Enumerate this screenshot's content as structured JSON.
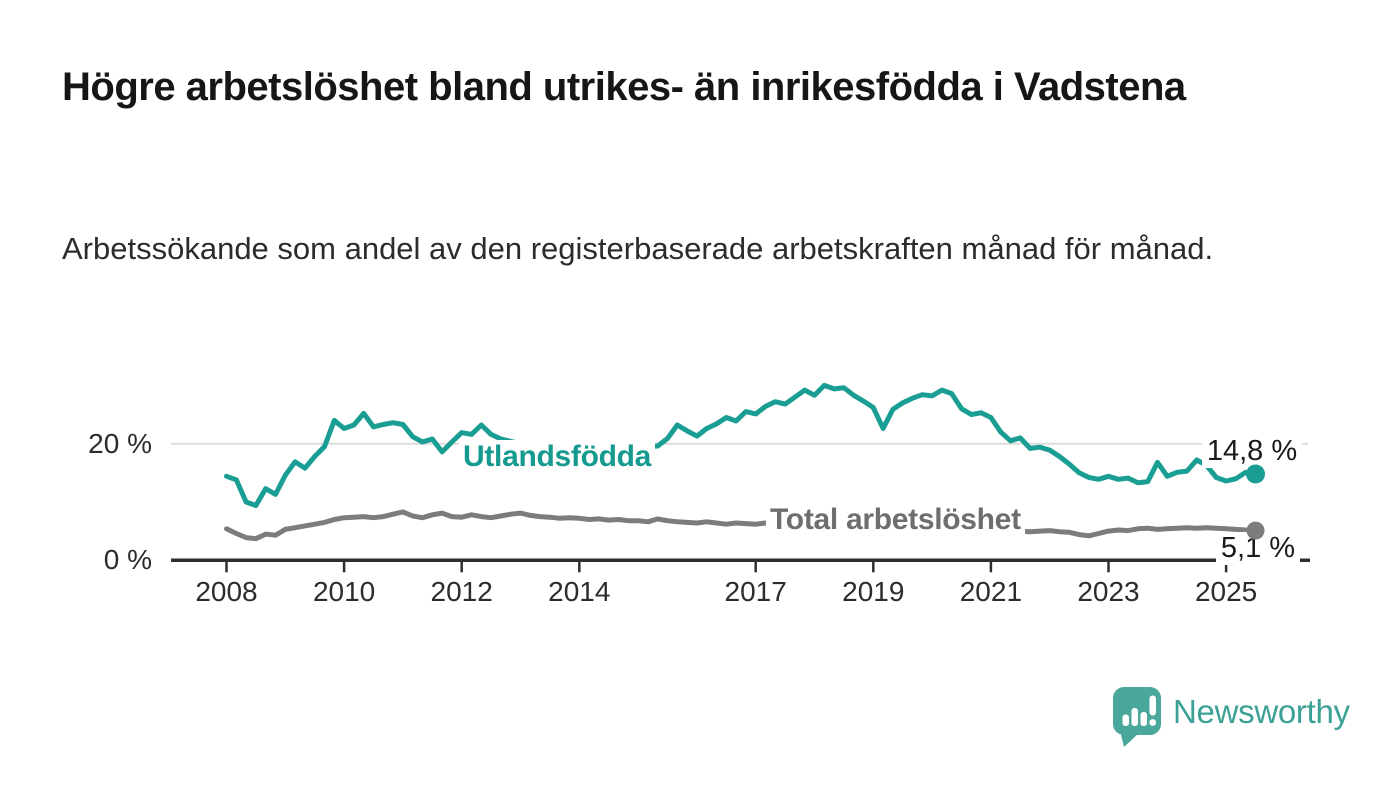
{
  "header": {
    "title": "Högre arbetslöshet bland utrikes- än inrikesfödda i Vadstena",
    "subtitle": "Arbetssökande som andel av den registerbaserade arbetskraften månad för månad."
  },
  "chart_data": {
    "type": "line",
    "title": "Högre arbetslöshet bland utrikes- än inrikesfödda i Vadstena",
    "xlabel": "",
    "ylabel": "Arbetssökande som andel av den registerbaserade arbetskraften",
    "x_unit": "year (monthly data)",
    "x_start": 2008.0,
    "x_step_years": 0.166667,
    "x_ticks": [
      2008,
      2010,
      2012,
      2014,
      2017,
      2019,
      2021,
      2023,
      2025
    ],
    "y_ticks": [
      {
        "value": 0,
        "label": "0 %"
      },
      {
        "value": 20,
        "label": "20 %"
      }
    ],
    "gridline_at": 20,
    "ylim": [
      0,
      32
    ],
    "legend_position": "inline labels on lines",
    "grid": "single light horizontal gridline at 20 %",
    "series": [
      {
        "name": "Utlandsfödda",
        "color": "#1a9e94",
        "end_label": "14,8 %",
        "end_value": 14.8,
        "values": [
          14.4,
          13.8,
          10.0,
          9.4,
          12.3,
          11.3,
          14.6,
          16.9,
          15.8,
          17.8,
          19.5,
          24.0,
          22.6,
          23.2,
          25.2,
          22.9,
          23.3,
          23.6,
          23.3,
          21.2,
          20.3,
          20.8,
          18.6,
          20.3,
          21.9,
          21.6,
          23.2,
          21.6,
          20.8,
          20.4,
          20.0,
          19.6,
          19.9,
          19.4,
          19.8,
          20.2,
          19.7,
          20.0,
          19.5,
          19.8,
          20.1,
          19.7,
          19.9,
          19.5,
          19.6,
          20.9,
          23.2,
          22.2,
          21.3,
          22.6,
          23.4,
          24.5,
          23.9,
          25.5,
          25.1,
          26.4,
          27.2,
          26.8,
          28.0,
          29.2,
          28.3,
          30.0,
          29.4,
          29.6,
          28.3,
          27.3,
          26.2,
          22.6,
          25.9,
          27.0,
          27.8,
          28.4,
          28.2,
          29.2,
          28.6,
          26.0,
          25.0,
          25.3,
          24.5,
          22.0,
          20.5,
          21.0,
          19.2,
          19.4,
          18.9,
          17.8,
          16.5,
          15.0,
          14.2,
          13.9,
          14.4,
          13.9,
          14.1,
          13.3,
          13.5,
          16.8,
          14.4,
          15.1,
          15.3,
          17.2,
          16.3,
          14.2,
          13.6,
          14.0,
          15.1,
          14.8
        ]
      },
      {
        "name": "Total arbetslöshet",
        "color": "#7b7c7e",
        "end_label": "5,1 %",
        "end_value": 5.1,
        "values": [
          5.4,
          4.6,
          3.9,
          3.7,
          4.5,
          4.3,
          5.3,
          5.6,
          5.9,
          6.2,
          6.5,
          7.0,
          7.3,
          7.4,
          7.5,
          7.3,
          7.5,
          7.9,
          8.3,
          7.6,
          7.3,
          7.8,
          8.1,
          7.5,
          7.4,
          7.8,
          7.5,
          7.3,
          7.6,
          7.9,
          8.1,
          7.7,
          7.5,
          7.4,
          7.2,
          7.3,
          7.2,
          7.0,
          7.1,
          6.9,
          7.0,
          6.8,
          6.8,
          6.6,
          7.1,
          6.8,
          6.6,
          6.5,
          6.4,
          6.6,
          6.4,
          6.2,
          6.4,
          6.3,
          6.2,
          6.4,
          6.3,
          6.2,
          6.1,
          6.0,
          5.9,
          5.8,
          5.7,
          5.6,
          5.5,
          5.4,
          5.4,
          5.3,
          5.2,
          5.1,
          5.0,
          5.1,
          5.1,
          5.2,
          5.3,
          5.2,
          5.1,
          5.0,
          4.9,
          5.0,
          4.9,
          5.0,
          4.9,
          5.0,
          5.1,
          4.9,
          4.8,
          4.4,
          4.2,
          4.6,
          5.0,
          5.2,
          5.1,
          5.4,
          5.5,
          5.3,
          5.4,
          5.5,
          5.6,
          5.5,
          5.6,
          5.5,
          5.4,
          5.3,
          5.2,
          5.1
        ]
      }
    ]
  },
  "branding": {
    "logo_text": "Newsworthy",
    "logo_color": "#4aa79c",
    "logo_text_color": "#3ca195"
  }
}
